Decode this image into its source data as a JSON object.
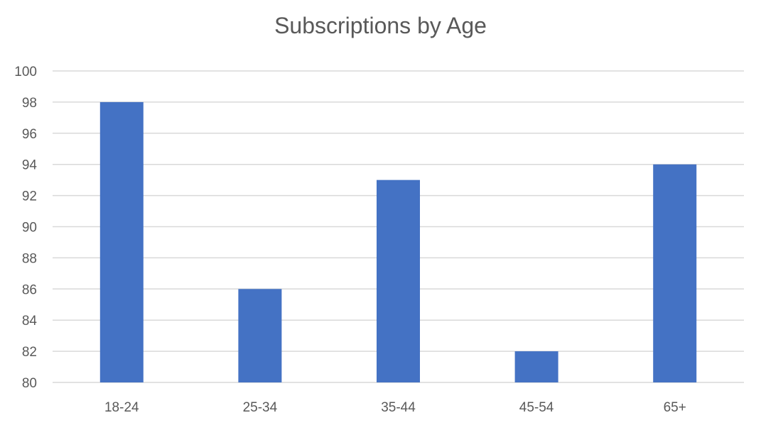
{
  "chart_data": {
    "type": "bar",
    "title": "Subscriptions by Age",
    "xlabel": "",
    "ylabel": "",
    "categories": [
      "18-24",
      "25-34",
      "35-44",
      "45-54",
      "65+"
    ],
    "values": [
      98,
      86,
      93,
      82,
      94
    ],
    "ylim": [
      80,
      100
    ],
    "yticks": [
      "80",
      "82",
      "84",
      "86",
      "88",
      "90",
      "92",
      "94",
      "96",
      "98",
      "100"
    ],
    "grid": true,
    "legend": "none",
    "bar_color": "#4472C4",
    "grid_color": "#D9D9D9"
  }
}
